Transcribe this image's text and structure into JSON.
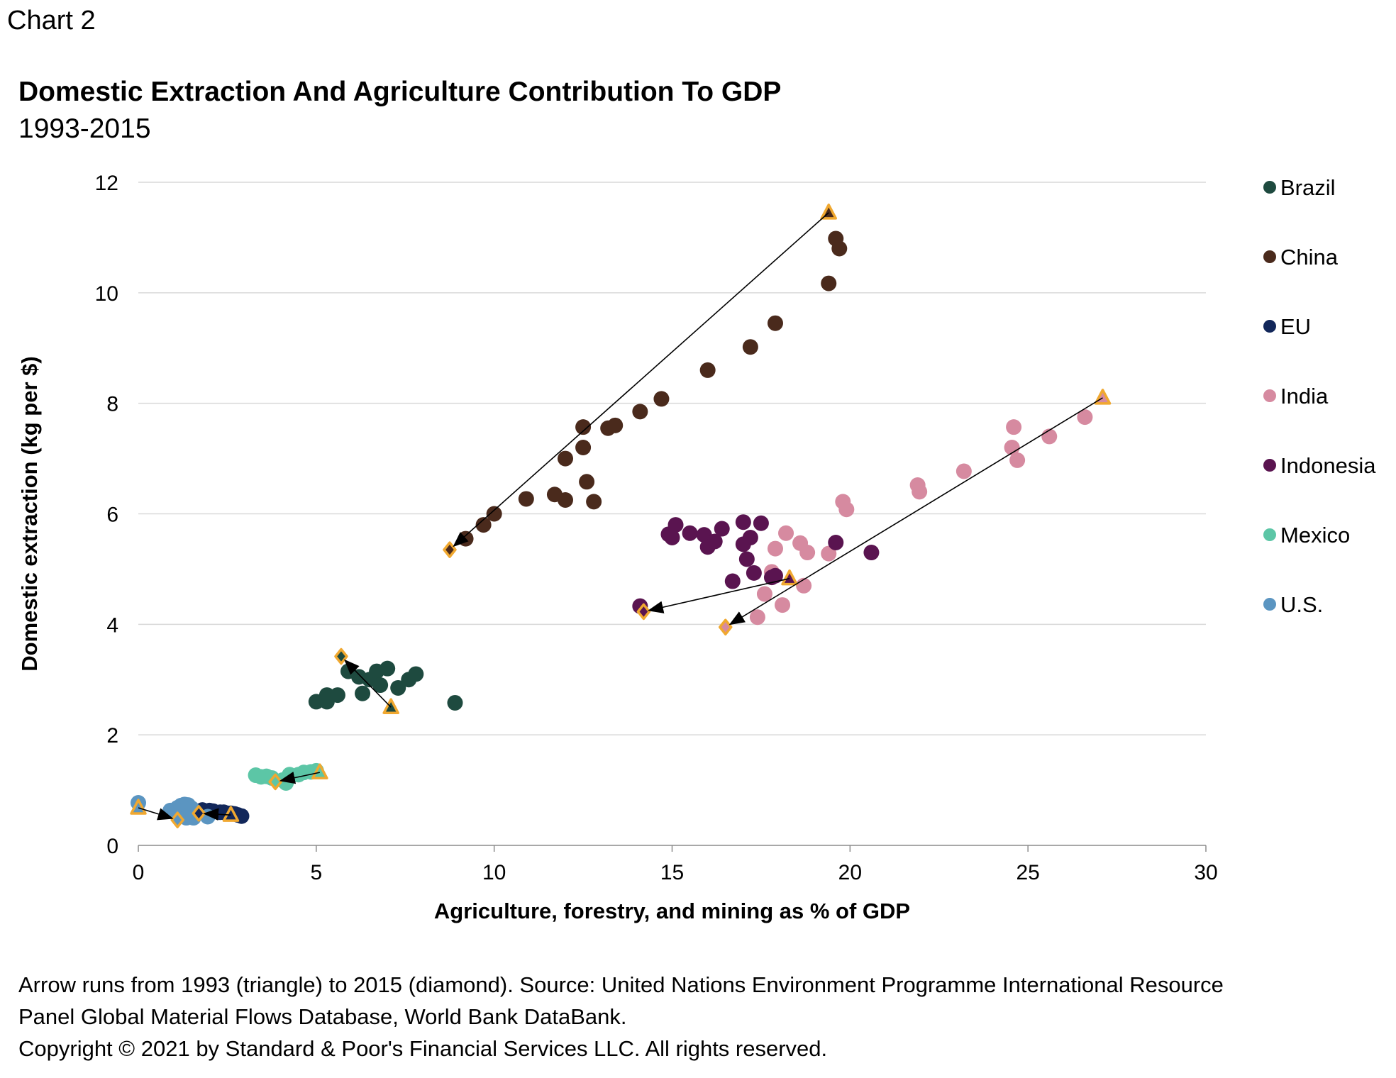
{
  "header": {
    "chart_label": "Chart 2",
    "title": "Domestic Extraction And Agriculture Contribution To GDP",
    "subtitle": "1993-2015"
  },
  "footer": {
    "note_line1": "Arrow runs from 1993 (triangle) to 2015 (diamond). Source: United Nations Environment Programme International Resource",
    "note_line2": "Panel Global Material Flows Database, World Bank DataBank.",
    "copyright": "Copyright © 2021 by Standard & Poor's Financial Services LLC. All rights reserved."
  },
  "chart_data": {
    "type": "scatter",
    "title": "Domestic Extraction And Agriculture Contribution To GDP",
    "subtitle": "1993-2015",
    "xlabel": "Agriculture, forestry, and mining as % of GDP",
    "ylabel": "Domestic extraction (kg per $)",
    "xlim": [
      0,
      30
    ],
    "ylim": [
      0,
      12
    ],
    "x_ticks": [
      0,
      5,
      10,
      15,
      20,
      25,
      30
    ],
    "y_ticks": [
      0,
      2,
      4,
      6,
      8,
      10,
      12
    ],
    "grid": "horizontal",
    "legend_position": "right",
    "marker_outline_color": "#f0a830",
    "arrow_color": "#000000",
    "series": [
      {
        "name": "Brazil",
        "color": "#1e4a3f",
        "start": [
          7.1,
          2.5
        ],
        "end": [
          5.7,
          3.42
        ],
        "points": [
          [
            5.0,
            2.6
          ],
          [
            5.3,
            2.6
          ],
          [
            5.3,
            2.72
          ],
          [
            5.6,
            2.72
          ],
          [
            5.9,
            3.15
          ],
          [
            6.2,
            3.05
          ],
          [
            6.3,
            2.75
          ],
          [
            6.5,
            3.0
          ],
          [
            6.7,
            3.15
          ],
          [
            6.8,
            2.9
          ],
          [
            7.0,
            3.2
          ],
          [
            7.3,
            2.85
          ],
          [
            7.6,
            3.0
          ],
          [
            7.8,
            3.1
          ],
          [
            8.9,
            2.58
          ]
        ]
      },
      {
        "name": "China",
        "color": "#4a2a1c",
        "start": [
          19.4,
          11.45
        ],
        "end": [
          8.75,
          5.35
        ],
        "points": [
          [
            9.2,
            5.55
          ],
          [
            9.7,
            5.8
          ],
          [
            10.0,
            6.0
          ],
          [
            10.9,
            6.27
          ],
          [
            11.7,
            6.35
          ],
          [
            12.0,
            6.25
          ],
          [
            12.0,
            7.0
          ],
          [
            12.5,
            7.2
          ],
          [
            12.5,
            7.57
          ],
          [
            12.6,
            6.58
          ],
          [
            12.8,
            6.22
          ],
          [
            13.2,
            7.55
          ],
          [
            13.4,
            7.6
          ],
          [
            14.1,
            7.85
          ],
          [
            14.7,
            8.08
          ],
          [
            16.0,
            8.6
          ],
          [
            17.2,
            9.02
          ],
          [
            17.9,
            9.45
          ],
          [
            19.4,
            10.17
          ],
          [
            19.6,
            10.98
          ],
          [
            19.7,
            10.8
          ]
        ]
      },
      {
        "name": "EU",
        "color": "#12275a",
        "start": [
          2.6,
          0.55
        ],
        "end": [
          1.7,
          0.58
        ],
        "points": [
          [
            1.8,
            0.64
          ],
          [
            2.0,
            0.63
          ],
          [
            2.1,
            0.62
          ],
          [
            2.3,
            0.6
          ],
          [
            2.4,
            0.6
          ],
          [
            2.5,
            0.58
          ],
          [
            2.6,
            0.58
          ],
          [
            2.7,
            0.57
          ],
          [
            2.8,
            0.55
          ],
          [
            2.9,
            0.53
          ]
        ]
      },
      {
        "name": "India",
        "color": "#d68aa0",
        "start": [
          27.1,
          8.1
        ],
        "end": [
          16.5,
          3.95
        ],
        "points": [
          [
            17.4,
            4.13
          ],
          [
            17.6,
            4.55
          ],
          [
            17.8,
            4.95
          ],
          [
            17.9,
            5.37
          ],
          [
            18.1,
            4.35
          ],
          [
            18.2,
            5.65
          ],
          [
            18.6,
            5.47
          ],
          [
            18.7,
            4.7
          ],
          [
            18.8,
            5.3
          ],
          [
            19.4,
            5.28
          ],
          [
            19.8,
            6.22
          ],
          [
            19.9,
            6.08
          ],
          [
            21.9,
            6.52
          ],
          [
            21.95,
            6.4
          ],
          [
            23.2,
            6.77
          ],
          [
            24.55,
            7.2
          ],
          [
            24.6,
            7.57
          ],
          [
            24.7,
            6.97
          ],
          [
            25.6,
            7.4
          ],
          [
            26.6,
            7.75
          ]
        ]
      },
      {
        "name": "Indonesia",
        "color": "#5a1450",
        "start": [
          18.3,
          4.83
        ],
        "end": [
          14.2,
          4.23
        ],
        "points": [
          [
            14.1,
            4.33
          ],
          [
            14.9,
            5.63
          ],
          [
            15.0,
            5.57
          ],
          [
            15.1,
            5.8
          ],
          [
            15.5,
            5.65
          ],
          [
            15.9,
            5.62
          ],
          [
            16.0,
            5.4
          ],
          [
            16.2,
            5.5
          ],
          [
            16.4,
            5.73
          ],
          [
            16.7,
            4.78
          ],
          [
            17.0,
            5.85
          ],
          [
            17.0,
            5.45
          ],
          [
            17.1,
            5.18
          ],
          [
            17.2,
            5.57
          ],
          [
            17.3,
            4.93
          ],
          [
            17.5,
            5.83
          ],
          [
            17.8,
            4.85
          ],
          [
            17.9,
            4.88
          ],
          [
            19.6,
            5.48
          ],
          [
            20.6,
            5.3
          ]
        ]
      },
      {
        "name": "Mexico",
        "color": "#5cc6a6",
        "start": [
          5.1,
          1.32
        ],
        "end": [
          3.85,
          1.15
        ],
        "points": [
          [
            3.3,
            1.27
          ],
          [
            3.45,
            1.24
          ],
          [
            3.6,
            1.25
          ],
          [
            3.75,
            1.22
          ],
          [
            4.05,
            1.18
          ],
          [
            4.15,
            1.13
          ],
          [
            4.25,
            1.28
          ],
          [
            4.5,
            1.28
          ],
          [
            4.65,
            1.32
          ],
          [
            4.85,
            1.33
          ],
          [
            5.0,
            1.35
          ]
        ]
      },
      {
        "name": "U.S.",
        "color": "#5b95c1",
        "start": [
          0.0,
          0.68
        ],
        "end": [
          1.1,
          0.46
        ],
        "points": [
          [
            0.0,
            0.77
          ],
          [
            0.9,
            0.63
          ],
          [
            1.1,
            0.68
          ],
          [
            1.2,
            0.72
          ],
          [
            1.3,
            0.74
          ],
          [
            1.4,
            0.73
          ],
          [
            1.5,
            0.67
          ],
          [
            1.35,
            0.5
          ],
          [
            1.55,
            0.5
          ],
          [
            1.95,
            0.52
          ]
        ]
      }
    ]
  }
}
